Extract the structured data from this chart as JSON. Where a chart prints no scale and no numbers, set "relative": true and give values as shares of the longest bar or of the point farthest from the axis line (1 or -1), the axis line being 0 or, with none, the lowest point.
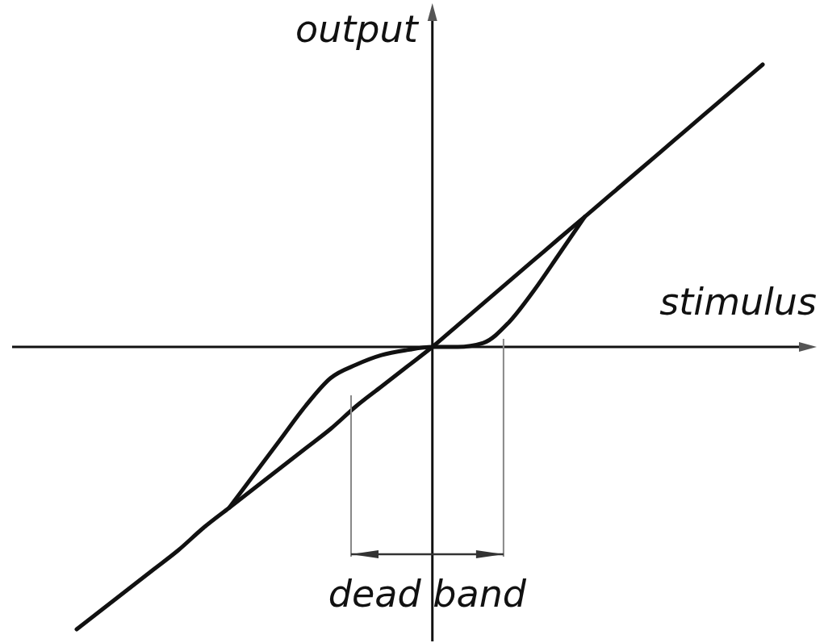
{
  "chart_data": {
    "type": "line",
    "relative": true,
    "xlabel": "stimulus",
    "ylabel": "output",
    "categories": [
      null,
      null,
      null,
      null,
      null,
      null,
      null,
      null,
      null,
      null,
      null,
      null,
      null,
      null,
      null,
      null,
      null,
      null,
      null,
      null,
      null,
      null,
      null,
      null,
      null,
      null,
      null,
      null
    ],
    "series": [
      {
        "color": "#111111",
        "values": [
          -1.0,
          -0.93,
          -0.86,
          -0.79,
          -0.72,
          -0.64,
          -0.57,
          -0.5,
          -0.43,
          -0.36,
          -0.29,
          -0.21,
          -0.14,
          -0.07,
          0,
          0.077,
          0.154,
          0.231,
          0.308,
          0.385,
          0.461,
          0.538,
          0.615,
          0.692,
          0.769,
          0.846,
          0.923,
          1.0
        ]
      },
      {
        "color": "#111111",
        "values": [
          null,
          null,
          null,
          null,
          null,
          null,
          -0.57,
          -0.45,
          -0.33,
          -0.21,
          -0.11,
          -0.063,
          -0.029,
          -0.011,
          0,
          0,
          0.014,
          0.086,
          0.2,
          0.33,
          0.461,
          null,
          null,
          null,
          null,
          null,
          null,
          null
        ]
      }
    ],
    "annotations": [
      "dead band"
    ]
  }
}
